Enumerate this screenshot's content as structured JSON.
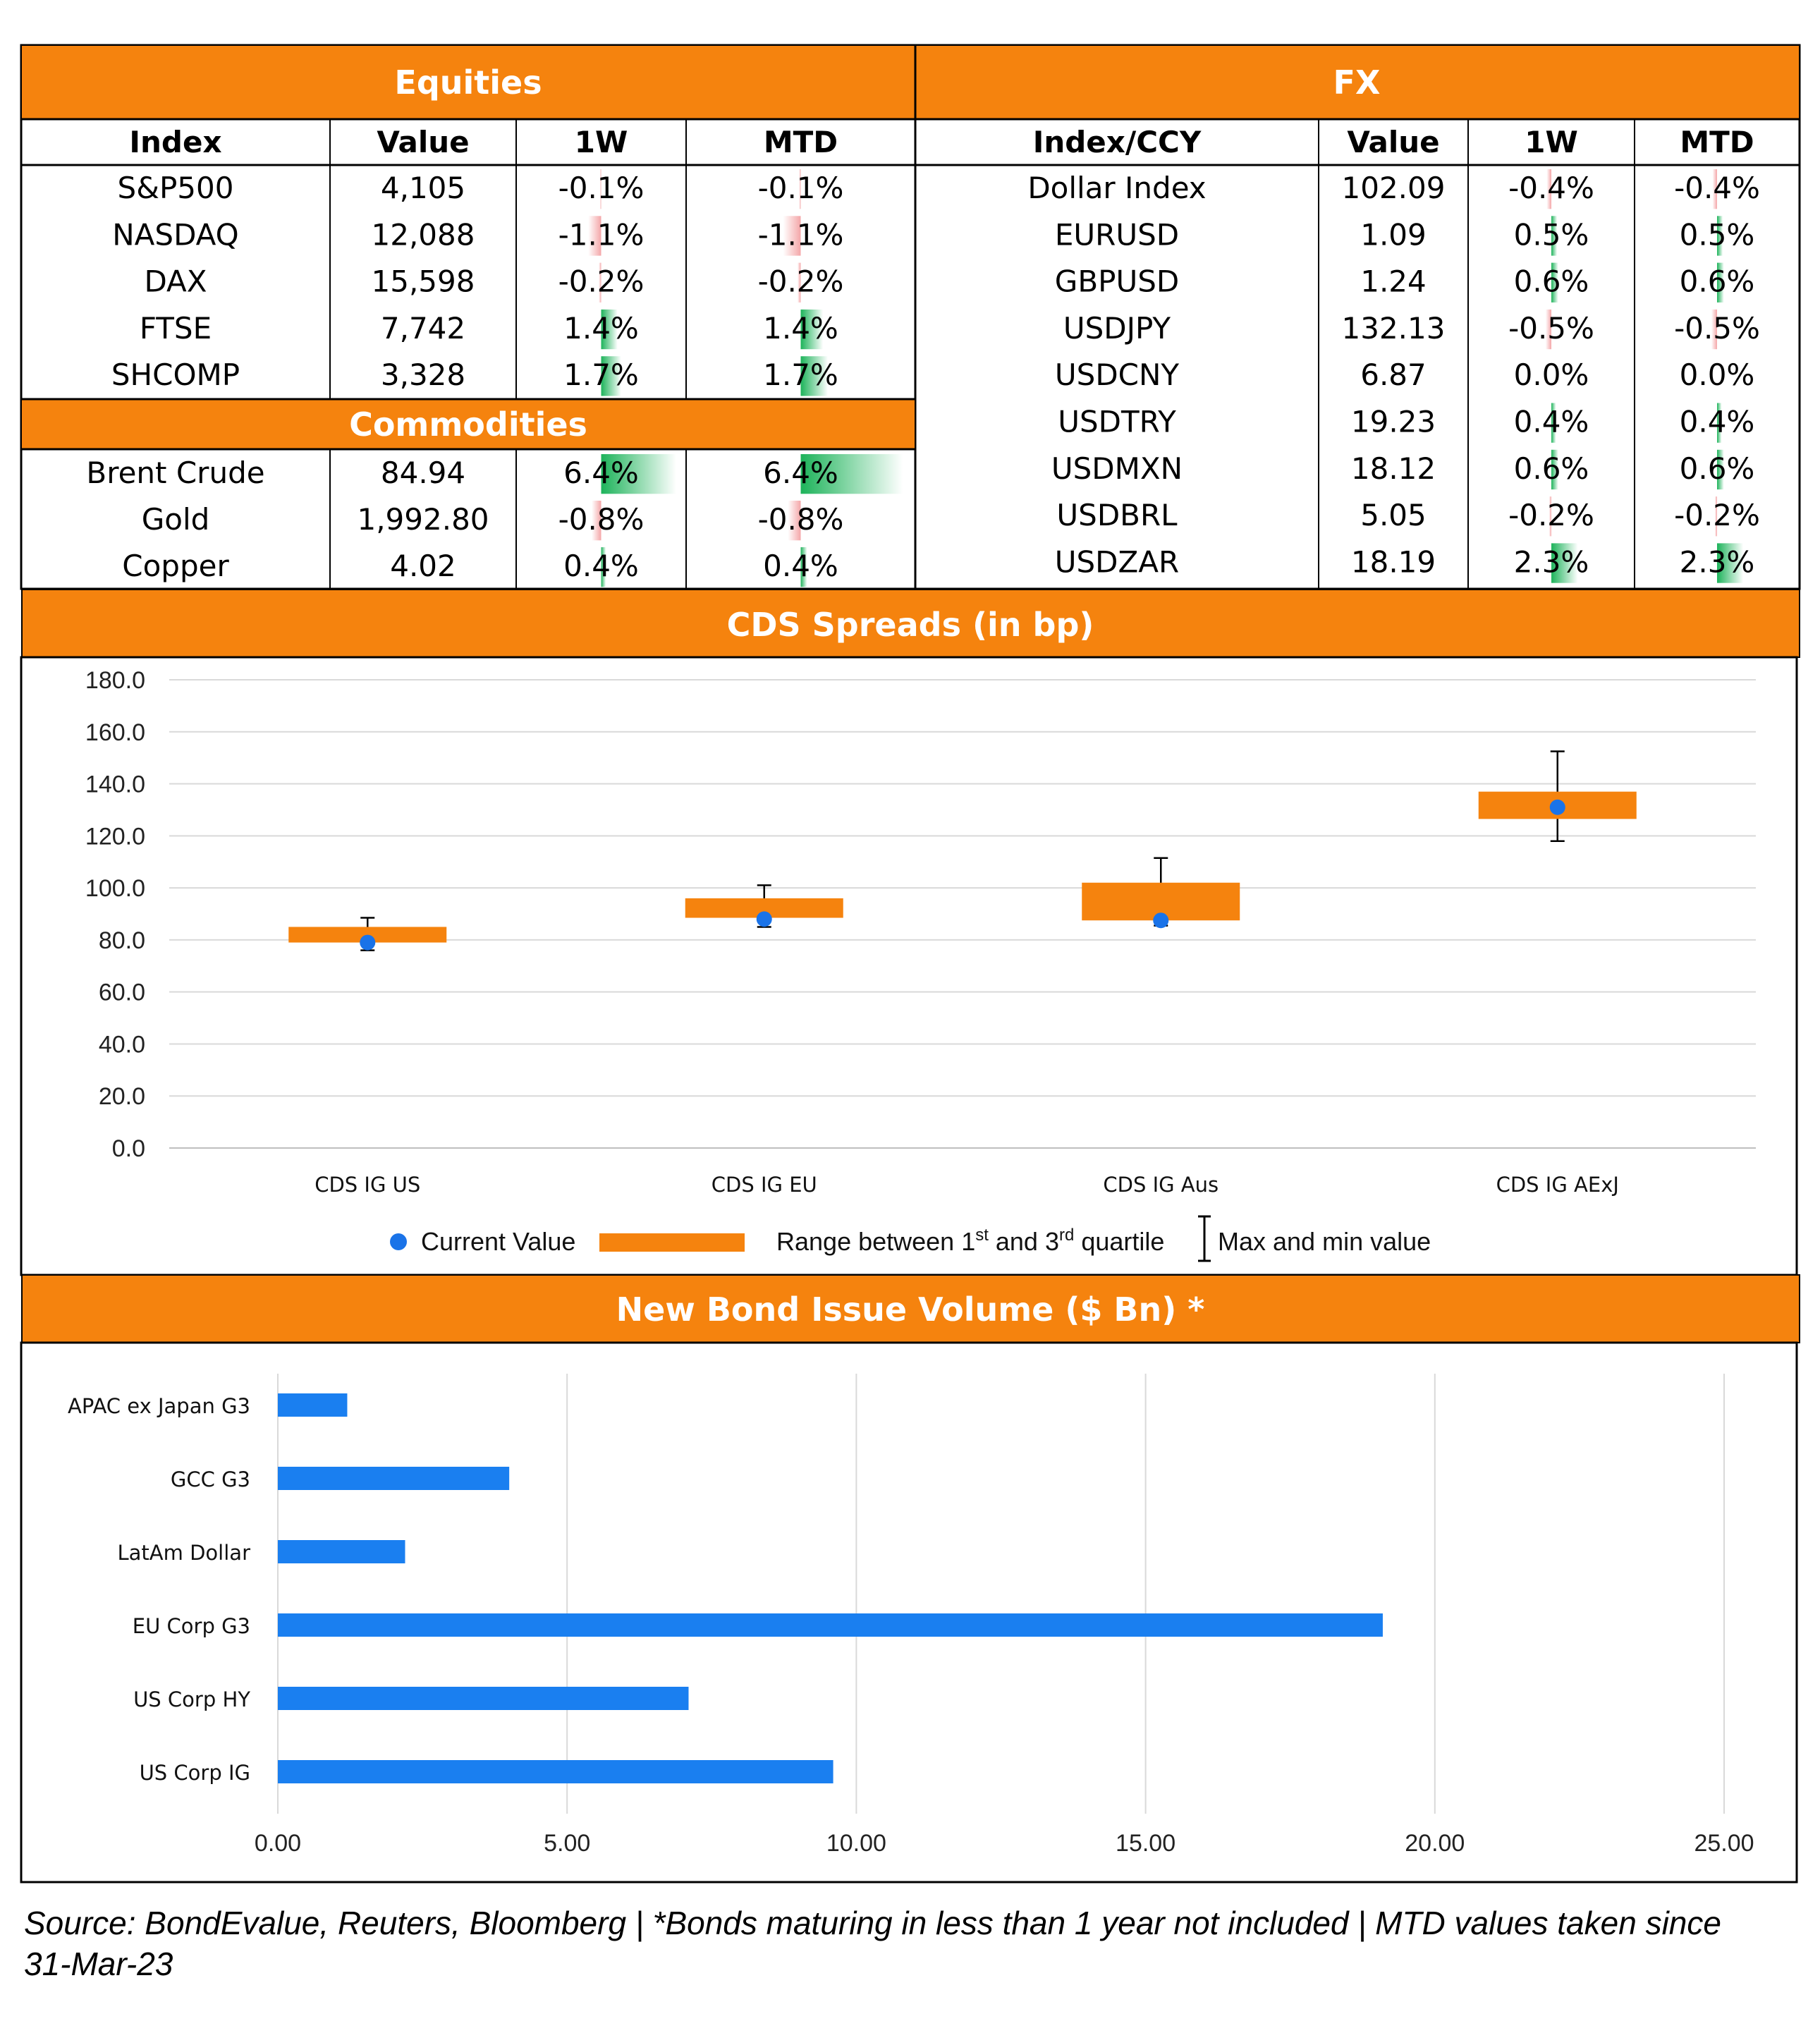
{
  "colors": {
    "orange": "#F5830E",
    "neg": "#F4A6A8",
    "pos": "#1DB35A",
    "bar": "#1A7FF0",
    "dot": "#1A73E8",
    "grid": "#D9D9D9"
  },
  "equities": {
    "title": "Equities",
    "headers": [
      "Index",
      "Value",
      "1W",
      "MTD"
    ],
    "rows": [
      {
        "name": "S&P500",
        "value": "4,105",
        "w1": "-0.1%",
        "mtd": "-0.1%",
        "w1_num": -0.1,
        "mtd_num": -0.1
      },
      {
        "name": "NASDAQ",
        "value": "12,088",
        "w1": "-1.1%",
        "mtd": "-1.1%",
        "w1_num": -1.1,
        "mtd_num": -1.1
      },
      {
        "name": "DAX",
        "value": "15,598",
        "w1": "-0.2%",
        "mtd": "-0.2%",
        "w1_num": -0.2,
        "mtd_num": -0.2
      },
      {
        "name": "FTSE",
        "value": "7,742",
        "w1": "1.4%",
        "mtd": "1.4%",
        "w1_num": 1.4,
        "mtd_num": 1.4
      },
      {
        "name": "SHCOMP",
        "value": "3,328",
        "w1": "1.7%",
        "mtd": "1.7%",
        "w1_num": 1.7,
        "mtd_num": 1.7
      }
    ]
  },
  "commodities": {
    "title": "Commodities",
    "rows": [
      {
        "name": "Brent Crude",
        "value": "84.94",
        "w1": "6.4%",
        "mtd": "6.4%",
        "w1_num": 6.4,
        "mtd_num": 6.4
      },
      {
        "name": "Gold",
        "value": "1,992.80",
        "w1": "-0.8%",
        "mtd": "-0.8%",
        "w1_num": -0.8,
        "mtd_num": -0.8
      },
      {
        "name": "Copper",
        "value": "4.02",
        "w1": "0.4%",
        "mtd": "0.4%",
        "w1_num": 0.4,
        "mtd_num": 0.4
      }
    ]
  },
  "fx": {
    "title": "FX",
    "headers": [
      "Index/CCY",
      "Value",
      "1W",
      "MTD"
    ],
    "rows": [
      {
        "name": "Dollar Index",
        "value": "102.09",
        "w1": "-0.4%",
        "mtd": "-0.4%",
        "w1_num": -0.4,
        "mtd_num": -0.4
      },
      {
        "name": "EURUSD",
        "value": "1.09",
        "w1": "0.5%",
        "mtd": "0.5%",
        "w1_num": 0.5,
        "mtd_num": 0.5
      },
      {
        "name": "GBPUSD",
        "value": "1.24",
        "w1": "0.6%",
        "mtd": "0.6%",
        "w1_num": 0.6,
        "mtd_num": 0.6
      },
      {
        "name": "USDJPY",
        "value": "132.13",
        "w1": "-0.5%",
        "mtd": "-0.5%",
        "w1_num": -0.5,
        "mtd_num": -0.5
      },
      {
        "name": "USDCNY",
        "value": "6.87",
        "w1": "0.0%",
        "mtd": "0.0%",
        "w1_num": 0.0,
        "mtd_num": 0.0
      },
      {
        "name": "USDTRY",
        "value": "19.23",
        "w1": "0.4%",
        "mtd": "0.4%",
        "w1_num": 0.4,
        "mtd_num": 0.4
      },
      {
        "name": "USDMXN",
        "value": "18.12",
        "w1": "0.6%",
        "mtd": "0.6%",
        "w1_num": 0.6,
        "mtd_num": 0.6
      },
      {
        "name": "USDBRL",
        "value": "5.05",
        "w1": "-0.2%",
        "mtd": "-0.2%",
        "w1_num": -0.2,
        "mtd_num": -0.2
      },
      {
        "name": "USDZAR",
        "value": "18.19",
        "w1": "2.3%",
        "mtd": "2.3%",
        "w1_num": 2.3,
        "mtd_num": 2.3
      }
    ]
  },
  "chart_data": [
    {
      "type": "box",
      "title": "CDS Spreads (in bp)",
      "ylim": [
        0,
        180
      ],
      "yticks": [
        "0.0",
        "20.0",
        "40.0",
        "60.0",
        "80.0",
        "100.0",
        "120.0",
        "140.0",
        "160.0",
        "180.0"
      ],
      "categories": [
        "CDS IG US",
        "CDS IG EU",
        "CDS IG Aus",
        "CDS IG AExJ"
      ],
      "series": [
        {
          "name": "Current Value",
          "values": [
            79,
            88,
            87.5,
            131
          ]
        },
        {
          "name": "Range between 1st and 3rd quartile",
          "q1": [
            79,
            88.5,
            87.5,
            126.5
          ],
          "q3": [
            85,
            96,
            102,
            137
          ]
        },
        {
          "name": "Max and min value",
          "min": [
            76,
            85,
            85.5,
            118
          ],
          "max": [
            88.5,
            101,
            111.5,
            152.5
          ]
        }
      ],
      "legend": {
        "current": "Current Value",
        "range_pre": "Range between 1",
        "range_sup1": "st",
        "range_mid": " and 3",
        "range_sup2": "rd",
        "range_post": " quartile",
        "minmax": "Max and min value"
      },
      "legend_position": "bottom",
      "grid": true
    },
    {
      "type": "bar",
      "orientation": "horizontal",
      "title": "New Bond Issue Volume ($ Bn) *",
      "xlim": [
        0,
        25
      ],
      "xticks": [
        "0.00",
        "5.00",
        "10.00",
        "15.00",
        "20.00",
        "25.00"
      ],
      "categories": [
        "APAC ex Japan G3",
        "GCC G3",
        "LatAm Dollar",
        "EU Corp G3",
        "US Corp HY",
        "US Corp IG"
      ],
      "values": [
        1.2,
        4.0,
        2.2,
        19.1,
        7.1,
        9.6
      ],
      "grid": true
    }
  ],
  "footnote": "Source: BondEvalue, Reuters, Bloomberg | *Bonds maturing in less than 1 year not included | MTD values taken since 31-Mar-23"
}
